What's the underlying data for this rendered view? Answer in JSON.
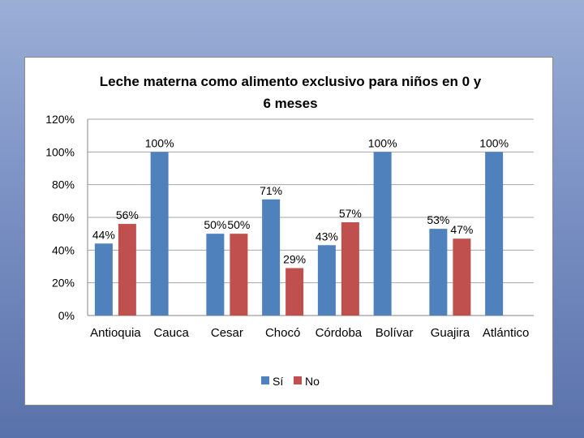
{
  "chart_data": {
    "type": "bar",
    "title": "Leche materna como alimento exclusivo para niños en 0 y 6 meses",
    "title_lines": [
      "Leche materna como alimento exclusivo para niños en 0 y",
      "6 meses"
    ],
    "categories": [
      "Antioquia",
      "Cauca",
      "Cesar",
      "Chocó",
      "Córdoba",
      "Bolívar",
      "Guajira",
      "Atlántico"
    ],
    "series": [
      {
        "name": "Sí",
        "color": "#4f81bd",
        "values": [
          44,
          100,
          50,
          71,
          43,
          100,
          53,
          100
        ],
        "labels": [
          "44%",
          "100%",
          "50%",
          "71%",
          "43%",
          "100%",
          "53%",
          "100%"
        ]
      },
      {
        "name": "No",
        "color": "#c0504d",
        "values": [
          56,
          0,
          50,
          29,
          57,
          0,
          47,
          0
        ],
        "labels": [
          "56%",
          "",
          "50%",
          "29%",
          "57%",
          "",
          "47%",
          ""
        ]
      }
    ],
    "y_ticks": [
      0,
      20,
      40,
      60,
      80,
      100,
      120
    ],
    "y_tick_labels": [
      "0%",
      "20%",
      "40%",
      "60%",
      "80%",
      "100%",
      "120%"
    ],
    "ylim": [
      0,
      120
    ],
    "xlabel": "",
    "ylabel": "",
    "grid": true,
    "legend_position": "bottom"
  }
}
